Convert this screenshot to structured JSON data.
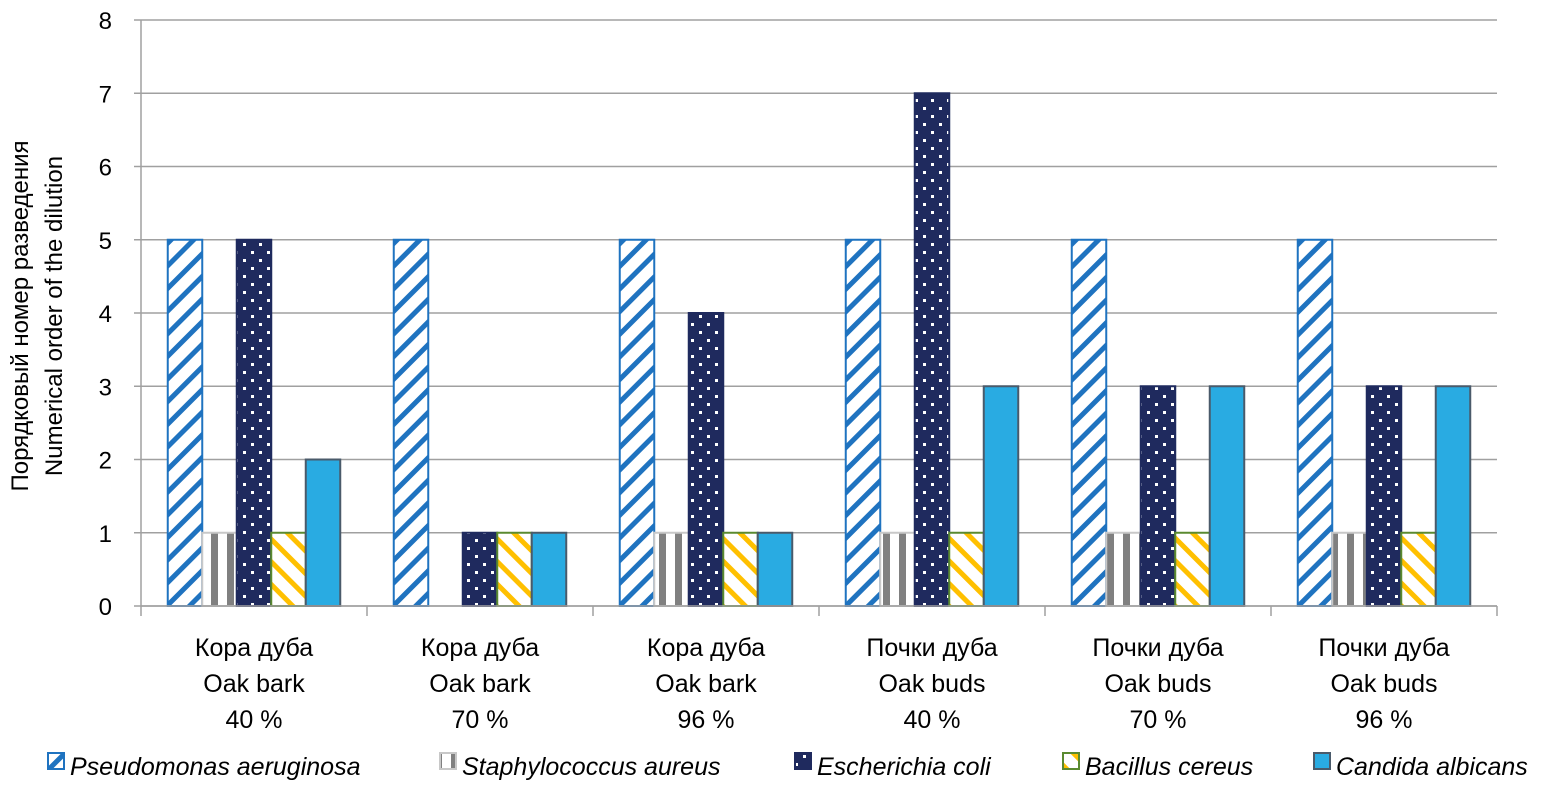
{
  "chart_data": {
    "type": "bar",
    "title": "",
    "xlabel": "",
    "ylabel_lines": [
      "Порядковый номер разведения",
      "Numerical order of the dilution"
    ],
    "ylim": [
      0,
      8
    ],
    "yticks": [
      0,
      1,
      2,
      3,
      4,
      5,
      6,
      7,
      8
    ],
    "grid": true,
    "legend_position": "bottom",
    "categories": [
      [
        "Кора дуба",
        "Oak bark",
        "40 %"
      ],
      [
        "Кора дуба",
        "Oak bark",
        "70 %"
      ],
      [
        "Кора дуба",
        "Oak bark",
        "96 %"
      ],
      [
        "Почки дуба",
        "Oak buds",
        "40 %"
      ],
      [
        "Почки дуба",
        "Oak buds",
        "70 %"
      ],
      [
        "Почки дуба",
        "Oak buds",
        "96 %"
      ]
    ],
    "series": [
      {
        "name": "Pseudomonas aeruginosa",
        "pattern": "diagonal-down-stripes",
        "color": "#1f73c0",
        "values": [
          5,
          5,
          5,
          5,
          5,
          5
        ]
      },
      {
        "name": "Staphylococcus aureus",
        "pattern": "vertical-stripes",
        "color": "#808080",
        "values": [
          1,
          0,
          1,
          1,
          1,
          1
        ]
      },
      {
        "name": "Escherichia coli",
        "pattern": "dots",
        "color": "#1f2a5e",
        "values": [
          5,
          1,
          4,
          7,
          3,
          3
        ]
      },
      {
        "name": "Bacillus cereus",
        "pattern": "diagonal-up-stripes",
        "color": "#ffc000",
        "border": "#5a8a30",
        "values": [
          1,
          1,
          1,
          1,
          1,
          1
        ]
      },
      {
        "name": "Candida albicans",
        "pattern": "solid",
        "color": "#29abe2",
        "border": "#4a5a6a",
        "values": [
          2,
          1,
          1,
          3,
          3,
          3
        ]
      }
    ]
  }
}
